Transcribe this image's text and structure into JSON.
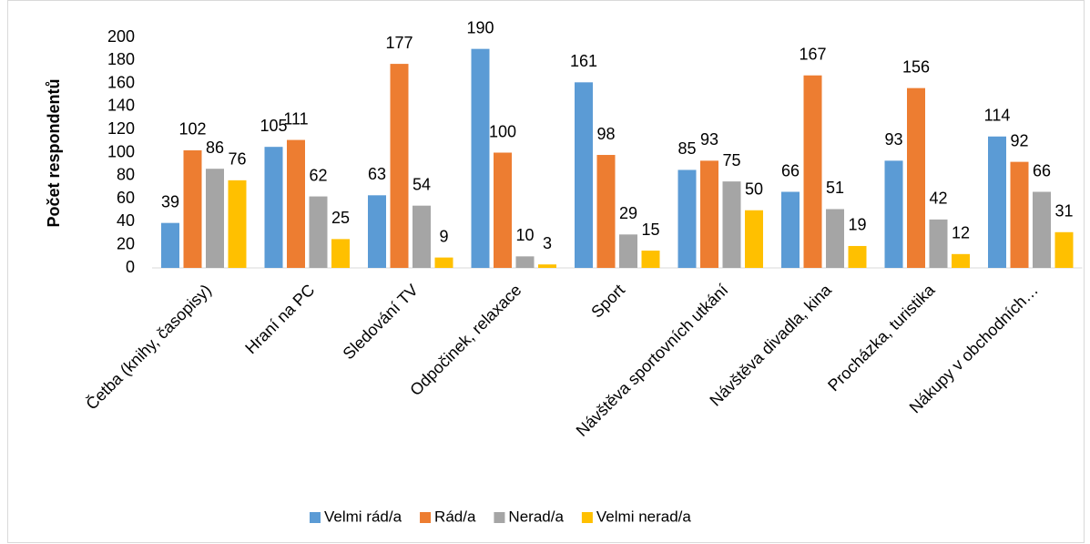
{
  "chart_data": {
    "type": "bar",
    "y_label": "Počet respondentů",
    "categories": [
      "Četba (knihy, časopisy)",
      "Hraní na PC",
      "Sledování TV",
      "Odpočinek, relaxace",
      "Sport",
      "Návštěva sportovních utkání",
      "Návštěva divadla, kina",
      "Procházka, turistika",
      "Nákupy v obchodních…"
    ],
    "series": [
      {
        "name": "Velmi rád/a",
        "color": "#5b9bd5",
        "values": [
          39,
          105,
          63,
          190,
          161,
          85,
          66,
          93,
          114
        ]
      },
      {
        "name": "Rád/a",
        "color": "#ed7d31",
        "values": [
          102,
          111,
          177,
          100,
          98,
          93,
          167,
          156,
          92
        ]
      },
      {
        "name": "Nerad/a",
        "color": "#a5a5a5",
        "values": [
          86,
          62,
          54,
          10,
          29,
          75,
          51,
          42,
          66
        ]
      },
      {
        "name": "Velmi nerad/a",
        "color": "#ffc000",
        "values": [
          76,
          25,
          9,
          3,
          15,
          50,
          19,
          12,
          31
        ]
      }
    ],
    "ylim": [
      0,
      200
    ],
    "yticks": [
      0,
      20,
      40,
      60,
      80,
      100,
      120,
      140,
      160,
      180,
      200
    ],
    "grid": false,
    "legend": "bottom"
  }
}
